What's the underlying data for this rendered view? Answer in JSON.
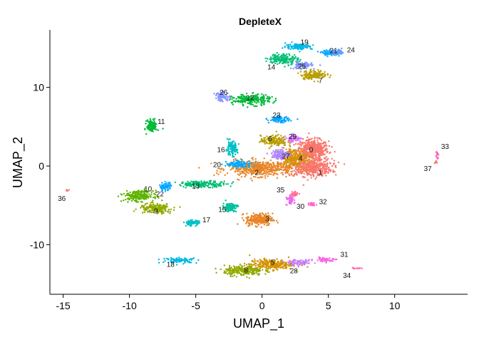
{
  "chart_data": {
    "type": "scatter",
    "title": "DepleteX",
    "xlabel": "UMAP_1",
    "ylabel": "UMAP_2",
    "xlim": [
      -16,
      15.5
    ],
    "ylim": [
      -16.3,
      17.3
    ],
    "xticks": [
      -15,
      -10,
      -5,
      0,
      5,
      10
    ],
    "xtick_labels": [
      "-15",
      "-10",
      "-5",
      "0",
      "5",
      "10"
    ],
    "yticks": [
      -10,
      0,
      10
    ],
    "ytick_labels": [
      "-10",
      "0",
      "10"
    ],
    "grid": false,
    "legend": "none",
    "clusters": [
      {
        "label": "0",
        "x": 3.8,
        "y": 2.0,
        "sx": 1.1,
        "sy": 1.2,
        "n": 520,
        "color": "#F8766D"
      },
      {
        "label": "1",
        "x": 3.6,
        "y": -0.2,
        "sx": 1.5,
        "sy": 1.0,
        "n": 480,
        "color": "#F8766D"
      },
      {
        "label": "2",
        "x": -0.2,
        "y": -0.3,
        "sx": 2.2,
        "sy": 0.9,
        "n": 520,
        "color": "#E88526"
      },
      {
        "label": "3",
        "x": -0.2,
        "y": -6.8,
        "sx": 0.9,
        "sy": 0.7,
        "n": 260,
        "color": "#E88526"
      },
      {
        "label": "4",
        "x": 2.4,
        "y": 1.1,
        "sx": 1.0,
        "sy": 1.0,
        "n": 220,
        "color": "#D39200"
      },
      {
        "label": "5",
        "x": 0.7,
        "y": -12.5,
        "sx": 1.5,
        "sy": 0.6,
        "n": 260,
        "color": "#D39200"
      },
      {
        "label": "6",
        "x": 0.9,
        "y": 3.2,
        "sx": 0.9,
        "sy": 0.6,
        "n": 160,
        "color": "#B79F00"
      },
      {
        "label": "7",
        "x": 3.9,
        "y": 11.6,
        "sx": 0.9,
        "sy": 0.5,
        "n": 150,
        "color": "#B79F00"
      },
      {
        "label": "8",
        "x": -1.4,
        "y": -13.3,
        "sx": 1.3,
        "sy": 0.55,
        "n": 260,
        "color": "#93AA00"
      },
      {
        "label": "9",
        "x": -8.0,
        "y": -5.4,
        "sx": 1.1,
        "sy": 0.55,
        "n": 200,
        "color": "#93AA00"
      },
      {
        "label": "10",
        "x": -9.3,
        "y": -3.8,
        "sx": 1.0,
        "sy": 0.6,
        "n": 220,
        "color": "#5EB300"
      },
      {
        "label": "11",
        "x": -8.3,
        "y": 5.1,
        "sx": 0.35,
        "sy": 0.7,
        "n": 120,
        "color": "#00BA38"
      },
      {
        "label": "12",
        "x": -0.8,
        "y": 8.4,
        "sx": 1.3,
        "sy": 0.6,
        "n": 220,
        "color": "#00BA38"
      },
      {
        "label": "13",
        "x": -4.5,
        "y": -2.3,
        "sx": 1.7,
        "sy": 0.35,
        "n": 180,
        "color": "#00BF74"
      },
      {
        "label": "14",
        "x": 1.6,
        "y": 13.6,
        "sx": 1.0,
        "sy": 0.6,
        "n": 180,
        "color": "#00BF74"
      },
      {
        "label": "15",
        "x": -2.4,
        "y": -5.2,
        "sx": 0.5,
        "sy": 0.5,
        "n": 110,
        "color": "#00C19F"
      },
      {
        "label": "16",
        "x": -2.3,
        "y": 2.2,
        "sx": 0.4,
        "sy": 0.8,
        "n": 110,
        "color": "#00BFC4"
      },
      {
        "label": "17",
        "x": -5.3,
        "y": -7.2,
        "sx": 0.5,
        "sy": 0.3,
        "n": 70,
        "color": "#00BFC4"
      },
      {
        "label": "18",
        "x": -6.2,
        "y": -12.0,
        "sx": 1.2,
        "sy": 0.3,
        "n": 90,
        "color": "#00B8E7"
      },
      {
        "label": "19",
        "x": 2.8,
        "y": 15.2,
        "sx": 0.9,
        "sy": 0.35,
        "n": 120,
        "color": "#00B8E7"
      },
      {
        "label": "20",
        "x": -1.7,
        "y": 0.2,
        "sx": 0.9,
        "sy": 0.4,
        "n": 110,
        "color": "#00A9FF"
      },
      {
        "label": "21",
        "x": 5.2,
        "y": 14.4,
        "sx": 0.6,
        "sy": 0.3,
        "n": 80,
        "color": "#00A9FF"
      },
      {
        "label": "22",
        "x": -7.3,
        "y": -2.6,
        "sx": 0.4,
        "sy": 0.45,
        "n": 70,
        "color": "#00A9FF"
      },
      {
        "label": "23",
        "x": 1.3,
        "y": 5.9,
        "sx": 0.7,
        "sy": 0.35,
        "n": 90,
        "color": "#00A5FF"
      },
      {
        "label": "24",
        "x": 5.7,
        "y": 14.4,
        "sx": 0.45,
        "sy": 0.3,
        "n": 60,
        "color": "#619CFF"
      },
      {
        "label": "25",
        "x": 3.0,
        "y": 12.8,
        "sx": 0.7,
        "sy": 0.4,
        "n": 90,
        "color": "#8494FF"
      },
      {
        "label": "26",
        "x": -3.0,
        "y": 8.8,
        "sx": 0.5,
        "sy": 0.5,
        "n": 80,
        "color": "#8494FF"
      },
      {
        "label": "27",
        "x": 1.4,
        "y": 1.5,
        "sx": 0.6,
        "sy": 0.6,
        "n": 120,
        "color": "#AE87FF"
      },
      {
        "label": "28",
        "x": 2.9,
        "y": -12.3,
        "sx": 0.8,
        "sy": 0.3,
        "n": 80,
        "color": "#C77CFF"
      },
      {
        "label": "29",
        "x": 2.4,
        "y": 3.5,
        "sx": 0.5,
        "sy": 0.4,
        "n": 70,
        "color": "#DB72FB"
      },
      {
        "label": "30",
        "x": 2.1,
        "y": -4.3,
        "sx": 0.3,
        "sy": 0.6,
        "n": 50,
        "color": "#ED68ED"
      },
      {
        "label": "31",
        "x": 4.8,
        "y": -11.9,
        "sx": 0.8,
        "sy": 0.25,
        "n": 50,
        "color": "#F962DD"
      },
      {
        "label": "32",
        "x": 3.8,
        "y": -4.8,
        "sx": 0.2,
        "sy": 0.2,
        "n": 20,
        "color": "#FF61C9"
      },
      {
        "label": "33",
        "x": 13.2,
        "y": 1.5,
        "sx": 0.1,
        "sy": 0.5,
        "n": 15,
        "color": "#FF62BC"
      },
      {
        "label": "34",
        "x": 7.1,
        "y": -13.0,
        "sx": 0.3,
        "sy": 0.15,
        "n": 12,
        "color": "#FF66A8"
      },
      {
        "label": "35",
        "x": 2.4,
        "y": -3.5,
        "sx": 0.3,
        "sy": 0.3,
        "n": 30,
        "color": "#FF6C91"
      },
      {
        "label": "36",
        "x": -14.7,
        "y": -3.1,
        "sx": 0.08,
        "sy": 0.12,
        "n": 6,
        "color": "#FC717F"
      },
      {
        "label": "37",
        "x": 13.1,
        "y": 0.5,
        "sx": 0.1,
        "sy": 0.2,
        "n": 8,
        "color": "#F8766D"
      }
    ],
    "label_positions": [
      {
        "label": "0",
        "x": 3.7,
        "y": 2.0
      },
      {
        "label": "1",
        "x": 4.4,
        "y": -0.9
      },
      {
        "label": "2",
        "x": -0.4,
        "y": -0.9
      },
      {
        "label": "3",
        "x": 0.4,
        "y": -6.8
      },
      {
        "label": "4",
        "x": 2.9,
        "y": 0.9
      },
      {
        "label": "5",
        "x": 0.8,
        "y": -12.3
      },
      {
        "label": "6",
        "x": 0.6,
        "y": 3.4
      },
      {
        "label": "7",
        "x": 4.4,
        "y": 10.8
      },
      {
        "label": "8",
        "x": -1.2,
        "y": -13.3
      },
      {
        "label": "9",
        "x": -8.0,
        "y": -5.8
      },
      {
        "label": "10",
        "x": -8.6,
        "y": -3.0
      },
      {
        "label": "11",
        "x": -7.6,
        "y": 5.6
      },
      {
        "label": "12",
        "x": -0.9,
        "y": 8.6
      },
      {
        "label": "13",
        "x": -5.0,
        "y": -2.6
      },
      {
        "label": "14",
        "x": 0.7,
        "y": 12.5
      },
      {
        "label": "15",
        "x": -3.0,
        "y": -5.6
      },
      {
        "label": "16",
        "x": -3.1,
        "y": 2.0
      },
      {
        "label": "17",
        "x": -4.2,
        "y": -6.9
      },
      {
        "label": "18",
        "x": -6.9,
        "y": -12.6
      },
      {
        "label": "19",
        "x": 3.2,
        "y": 15.7
      },
      {
        "label": "20",
        "x": -3.4,
        "y": 0.1
      },
      {
        "label": "21",
        "x": 5.4,
        "y": 14.6
      },
      {
        "label": "22",
        "x": -7.7,
        "y": -3.6
      },
      {
        "label": "23",
        "x": 1.1,
        "y": 6.4
      },
      {
        "label": "24",
        "x": 6.7,
        "y": 14.7
      },
      {
        "label": "25",
        "x": 3.0,
        "y": 12.6
      },
      {
        "label": "26",
        "x": -2.9,
        "y": 9.3
      },
      {
        "label": "27",
        "x": 1.8,
        "y": 1.2
      },
      {
        "label": "28",
        "x": 2.4,
        "y": -13.4
      },
      {
        "label": "29",
        "x": 2.3,
        "y": 3.7
      },
      {
        "label": "30",
        "x": 2.9,
        "y": -5.2
      },
      {
        "label": "31",
        "x": 6.2,
        "y": -11.3
      },
      {
        "label": "32",
        "x": 4.6,
        "y": -4.6
      },
      {
        "label": "33",
        "x": 13.8,
        "y": 2.4
      },
      {
        "label": "34",
        "x": 6.4,
        "y": -14.0
      },
      {
        "label": "35",
        "x": 1.4,
        "y": -3.1
      },
      {
        "label": "36",
        "x": -15.1,
        "y": -4.2
      },
      {
        "label": "37",
        "x": 12.5,
        "y": -0.4
      }
    ]
  }
}
